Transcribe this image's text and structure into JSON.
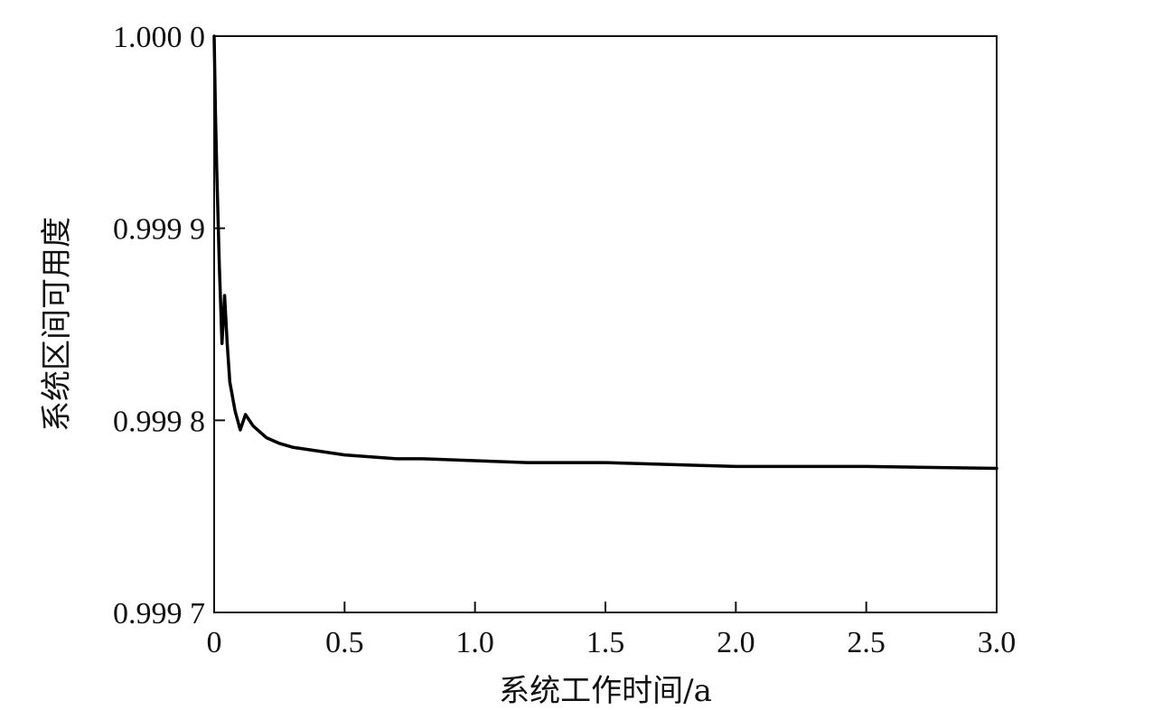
{
  "chart_data": {
    "type": "line",
    "title": "",
    "xlabel": "系统工作时间/a",
    "ylabel": "系统区间可用度",
    "xlim": [
      0,
      3.0
    ],
    "ylim": [
      0.9997,
      1.0
    ],
    "x_ticks": [
      {
        "value": 0,
        "label": "0"
      },
      {
        "value": 0.5,
        "label": "0.5"
      },
      {
        "value": 1.0,
        "label": "1.0"
      },
      {
        "value": 1.5,
        "label": "1.5"
      },
      {
        "value": 2.0,
        "label": "2.0"
      },
      {
        "value": 2.5,
        "label": "2.5"
      },
      {
        "value": 3.0,
        "label": "3.0"
      }
    ],
    "y_ticks": [
      {
        "value": 0.9997,
        "label": "0.999 7"
      },
      {
        "value": 0.9998,
        "label": "0.999 8"
      },
      {
        "value": 0.9999,
        "label": "0.999 9"
      },
      {
        "value": 1.0,
        "label": "1.000 0"
      }
    ],
    "grid": false,
    "legend": "none",
    "line_color": "#000000",
    "series": [
      {
        "x": [
          0,
          0.005,
          0.01,
          0.02,
          0.03,
          0.04,
          0.05,
          0.06,
          0.08,
          0.1,
          0.12,
          0.15,
          0.2,
          0.25,
          0.3,
          0.4,
          0.5,
          0.6,
          0.7,
          0.8,
          1.0,
          1.2,
          1.5,
          2.0,
          2.5,
          3.0
        ],
        "y": [
          1.0,
          0.99996,
          0.99993,
          0.99988,
          0.99984,
          0.999865,
          0.99984,
          0.99982,
          0.999805,
          0.999795,
          0.999803,
          0.999797,
          0.999791,
          0.999788,
          0.999786,
          0.999784,
          0.999782,
          0.999781,
          0.99978,
          0.99978,
          0.999779,
          0.999778,
          0.999778,
          0.999776,
          0.999776,
          0.999775
        ]
      }
    ]
  }
}
